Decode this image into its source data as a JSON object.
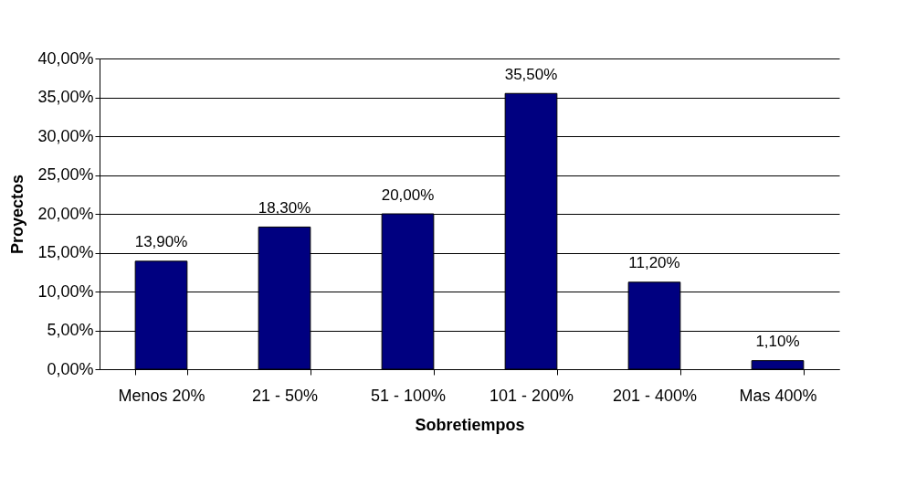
{
  "chart_data": {
    "type": "bar",
    "xlabel": "Sobretiempos",
    "ylabel": "Proyectos",
    "categories": [
      "Menos 20%",
      "21 - 50%",
      "51 - 100%",
      "101 - 200%",
      "201 - 400%",
      "Mas 400%"
    ],
    "values": [
      13.9,
      18.3,
      20.0,
      35.5,
      11.2,
      1.1
    ],
    "value_labels": [
      "13,90%",
      "18,30%",
      "20,00%",
      "35,50%",
      "11,20%",
      "1,10%"
    ],
    "color": "#000080",
    "ylim": [
      0,
      40
    ],
    "yticks": [
      {
        "value": 0,
        "label": "0,00%"
      },
      {
        "value": 5,
        "label": "5,00%"
      },
      {
        "value": 10,
        "label": "10,00%"
      },
      {
        "value": 15,
        "label": "15,00%"
      },
      {
        "value": 20,
        "label": "20,00%"
      },
      {
        "value": 25,
        "label": "25,00%"
      },
      {
        "value": 30,
        "label": "30,00%"
      },
      {
        "value": 35,
        "label": "35,00%"
      },
      {
        "value": 40,
        "label": "40,00%"
      }
    ],
    "grid": true
  }
}
